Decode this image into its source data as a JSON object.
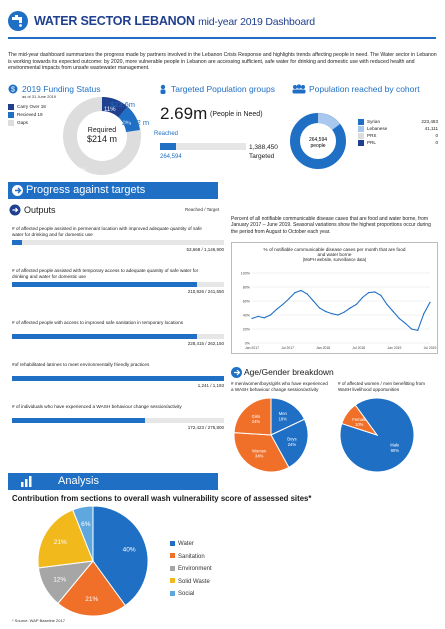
{
  "header": {
    "title": "WATER SECTOR LEBANON",
    "subtitle": "mid-year 2019 Dashboard"
  },
  "intro": "The mid-year dashboard summarizes the progress made by partners involved in the Lebanon Crisis Response and highlights trends affecting people in need. The Water sector in Lebanon is working towards its expected outcome: by 2020, more vulnerable people in Lebanon are accessing sufficient, safe water for drinking and domestic use with reduced health and environmental impacts from unsafe wastewater management.",
  "funding": {
    "title": "2019 Funding Status",
    "as_of": "as of 31 June 2019",
    "legend": [
      "Carry Over 18",
      "Recieved 19",
      "Gaps"
    ],
    "required_label": "Required",
    "required_value": "$214 m",
    "received_value": "$23.6m",
    "carry_value": "$22.2 m",
    "pct_received": "11%",
    "pct_carry": "10%",
    "pct_gap": "79%",
    "colors": [
      "#1f3f8f",
      "#1f6fc5",
      "#dddddd"
    ]
  },
  "targeted": {
    "title": "Targeted Population groups",
    "pin_value": "2.69m",
    "pin_label": "(People in Need)",
    "reached_label": "Reached",
    "reached_value": "264,594",
    "targeted_value": "1,388,450",
    "targeted_label": "Targeted",
    "reached_fraction": 0.19
  },
  "cohort": {
    "title": "Population reached by cohort",
    "center_value": "264,594",
    "center_label": "people",
    "rows": [
      {
        "name": "Syrian",
        "value": "223,483",
        "color": "#1f6fc5"
      },
      {
        "name": "Lebanese",
        "value": "41,111",
        "color": "#a9c8ee"
      },
      {
        "name": "PRS",
        "value": "0",
        "color": "#dddddd"
      },
      {
        "name": "PRL",
        "value": "0",
        "color": "#1f3f8f"
      }
    ]
  },
  "progress": {
    "banner": "Progress against targets",
    "outputs_label": "Outputs",
    "reached_target_label": "Reached / Target",
    "bars": [
      {
        "label": "# of affected people assisted in permenant location with improved adequate quantity of safe water for drinking and for domestic use",
        "value": "53,668 / 1,146,900",
        "fraction": 0.047
      },
      {
        "label": "# of affected people assisted with temporary access to adequate quantity of safe water for drinking and water for domestic use",
        "value": "210,926 / 241,550",
        "fraction": 0.873
      },
      {
        "label": "# of affected people with access to improved safe sanitation in temporary locations",
        "value": "228,415 / 262,150",
        "fraction": 0.871
      },
      {
        "label": "#of rehabilitated latrines to meet environmentally friendly practices",
        "value": "1,241 / 1,193",
        "fraction": 1.0
      },
      {
        "label": "# of individuals who have experienced a WASH behaviour change session/activity",
        "value": "172,423 / 275,800",
        "fraction": 0.625
      }
    ]
  },
  "disease": {
    "text": "Percent of all notifiable communicable disease cases that are food and water borne, from January 2017 – June 2019. Seasonal variations show the highest proportions occur during the period from August to October each year.",
    "chart_title": "% of notifiable communicable disease cases per month that are food and water borne",
    "chart_source": "(MoPH website, surveillance data)"
  },
  "gender": {
    "title": "Age/Gender breakdown",
    "pie1_caption": "# men/women/boys/girls who have experienced a WASH behaviour change session/activity",
    "pie2_caption": "# of affected women / men benefitting from WaSH livelihood opportunities",
    "pie1": [
      {
        "name": "Men",
        "pct": "18%",
        "value": 18,
        "color": "#1f6fc5"
      },
      {
        "name": "Boys",
        "pct": "24%",
        "value": 24,
        "color": "#1f6fc5"
      },
      {
        "name": "Women",
        "pct": "34%",
        "value": 34,
        "color": "#f0702a"
      },
      {
        "name": "Girls",
        "pct": "24%",
        "value": 24,
        "color": "#f0702a"
      }
    ],
    "pie2": [
      {
        "name": "Male",
        "pct": "90%",
        "value": 90,
        "color": "#1f6fc5"
      },
      {
        "name": "Female",
        "pct": "10%",
        "value": 10,
        "color": "#f0702a"
      }
    ]
  },
  "analysis": {
    "banner": "Analysis",
    "title": "Contribution from sections to overall wash vulnerability score of assessed sites*",
    "source": "* Source: WAP Baseline 2017"
  },
  "chart_data": [
    {
      "type": "line",
      "title": "% of notifiable communicable disease cases per month that are food and water borne",
      "subtitle": "(MoPH website, surveillance data)",
      "x": [
        "Jan 2017",
        "Feb 2017",
        "Mar 2017",
        "Apr 2017",
        "May 2017",
        "Jun 2017",
        "Jul 2017",
        "Aug 2017",
        "Sep 2017",
        "Oct 2017",
        "Nov 2017",
        "Dec 2017",
        "Jan 2018",
        "Feb 2018",
        "Mar 2018",
        "Apr 2018",
        "May 2018",
        "Jun 2018",
        "Jul 2018",
        "Aug 2018",
        "Sep 2018",
        "Oct 2018",
        "Nov 2018",
        "Dec 2018",
        "Jan 2019",
        "Feb 2019",
        "Mar 2019",
        "Apr 2019",
        "May 2019",
        "Jun 2019"
      ],
      "tick_labels": [
        "Jan 2017",
        "Jul 2017",
        "Jan 2018",
        "Jul 2018",
        "Jan 2019",
        "Jul 2019"
      ],
      "y_ticks": [
        "100%",
        "80%",
        "60%",
        "40%",
        "20%",
        "0%"
      ],
      "values": [
        35,
        38,
        36,
        40,
        48,
        55,
        63,
        72,
        75,
        70,
        60,
        50,
        45,
        42,
        40,
        44,
        50,
        55,
        65,
        72,
        73,
        68,
        55,
        45,
        35,
        28,
        20,
        18,
        42,
        58
      ],
      "ylim": [
        0,
        100
      ]
    },
    {
      "type": "pie",
      "title": "Contribution from sections to overall wash vulnerability score of assessed sites*",
      "categories": [
        "Water",
        "Sanitation",
        "Environment",
        "Solid Waste",
        "Social"
      ],
      "values": [
        40,
        21,
        12,
        21,
        6
      ],
      "labels": [
        "40%",
        "21%",
        "12%",
        "21%",
        "6%"
      ],
      "colors": [
        "#1f6fc5",
        "#f0702a",
        "#a6a6a6",
        "#f2b91d",
        "#5fa8df"
      ]
    }
  ]
}
